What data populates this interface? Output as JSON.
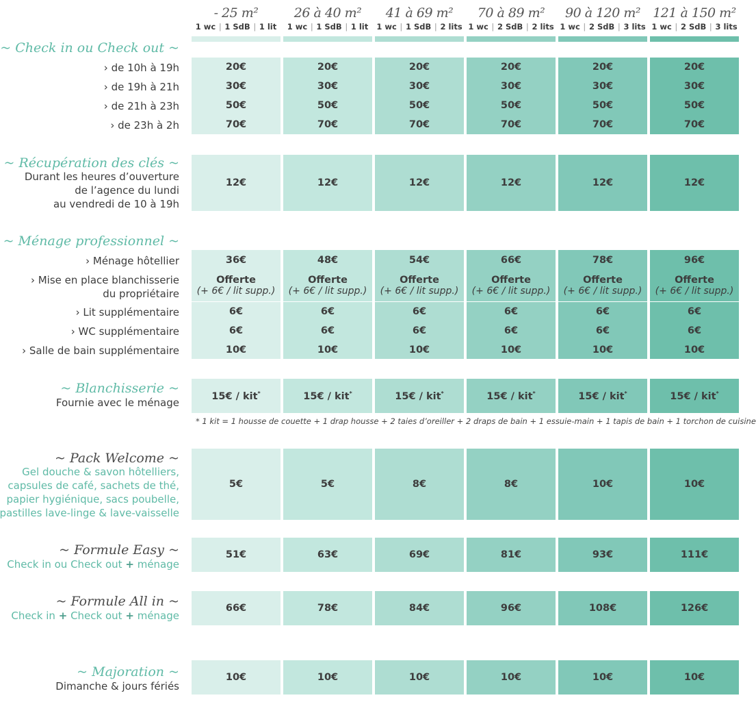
{
  "columns": [
    {
      "size": "- 25 m²",
      "wc": "1 wc",
      "sdb": "1 SdB",
      "lits": "1 lit"
    },
    {
      "size": "26 à 40 m²",
      "wc": "1 wc",
      "sdb": "1 SdB",
      "lits": "1 lit"
    },
    {
      "size": "41 à 69 m²",
      "wc": "1 wc",
      "sdb": "1 SdB",
      "lits": "2 lits"
    },
    {
      "size": "70 à 89 m²",
      "wc": "1 wc",
      "sdb": "2 SdB",
      "lits": "2 lits"
    },
    {
      "size": "90 à 120 m²",
      "wc": "1 wc",
      "sdb": "2 SdB",
      "lits": "3 lits"
    },
    {
      "size": "121 à 150 m²",
      "wc": "1 wc",
      "sdb": "2 SdB",
      "lits": "3 lits"
    }
  ],
  "checkin": {
    "title": "~ Check in ou Check out ~",
    "rows": [
      {
        "label": "› de 10h à 19h",
        "values": [
          "20€",
          "20€",
          "20€",
          "20€",
          "20€",
          "20€"
        ]
      },
      {
        "label": "› de 19h à 21h",
        "values": [
          "30€",
          "30€",
          "30€",
          "30€",
          "30€",
          "30€"
        ]
      },
      {
        "label": "› de 21h à 23h",
        "values": [
          "50€",
          "50€",
          "50€",
          "50€",
          "50€",
          "50€"
        ]
      },
      {
        "label": "› de 23h à 2h",
        "values": [
          "70€",
          "70€",
          "70€",
          "70€",
          "70€",
          "70€"
        ]
      }
    ]
  },
  "cles": {
    "title": "~ Récupération des clés ~",
    "desc": [
      "Durant les heures d’ouverture",
      "de l’agence du lundi",
      "au vendredi de 10 à 19h"
    ],
    "values": [
      "12€",
      "12€",
      "12€",
      "12€",
      "12€",
      "12€"
    ]
  },
  "menage": {
    "title": "~ Ménage professionnel ~",
    "hotelier": {
      "label": "›  Ménage hôtellier",
      "values": [
        "36€",
        "48€",
        "54€",
        "66€",
        "78€",
        "96€"
      ]
    },
    "blanchisserie": {
      "label1": "› Mise en place blanchisserie",
      "label2": "du propriétaire",
      "main": "Offerte",
      "sub": "(+ 6€ / lit supp.)"
    },
    "rows": [
      {
        "label": "› Lit supplémentaire",
        "values": [
          "6€",
          "6€",
          "6€",
          "6€",
          "6€",
          "6€"
        ]
      },
      {
        "label": "› WC supplémentaire",
        "values": [
          "6€",
          "6€",
          "6€",
          "6€",
          "6€",
          "6€"
        ]
      },
      {
        "label": "› Salle de bain supplémentaire",
        "values": [
          "10€",
          "10€",
          "10€",
          "10€",
          "10€",
          "10€"
        ]
      }
    ]
  },
  "blanch": {
    "title": "~ Blanchisserie ~",
    "desc": "Fournie avec le ménage",
    "value": "15€ / kit",
    "mark": "*",
    "note": "* 1 kit = 1 housse de couette + 1 drap housse + 2 taies d’oreiller + 2 draps de bain + 1 essuie-main + 1 tapis de bain + 1 torchon de cuisine"
  },
  "welcome": {
    "title": "~ Pack Welcome ~",
    "desc": [
      "Gel douche & savon hôtelliers,",
      "capsules de café, sachets de thé,",
      "papier hygiénique, sacs poubelle,",
      "pastilles lave-linge & lave-vaisselle"
    ],
    "values": [
      "5€",
      "5€",
      "8€",
      "8€",
      "10€",
      "10€"
    ]
  },
  "easy": {
    "title": "~ Formule Easy ~",
    "desc_a": "Check in ou Check out",
    "plus": "+",
    "desc_b": "ménage",
    "values": [
      "51€",
      "63€",
      "69€",
      "81€",
      "93€",
      "111€"
    ]
  },
  "allin": {
    "title": "~ Formule All in ~",
    "desc_a": "Check in",
    "plus": "+",
    "desc_b": "Check out",
    "desc_c": "ménage",
    "values": [
      "66€",
      "78€",
      "84€",
      "96€",
      "108€",
      "126€"
    ]
  },
  "majoration": {
    "title": "~ Majoration ~",
    "desc": "Dimanche & jours fériés",
    "values": [
      "10€",
      "10€",
      "10€",
      "10€",
      "10€",
      "10€"
    ]
  },
  "colors": [
    "#d9efea",
    "#c2e7de",
    "#aeddd2",
    "#94d1c3",
    "#81c8b8",
    "#6ebfab"
  ]
}
